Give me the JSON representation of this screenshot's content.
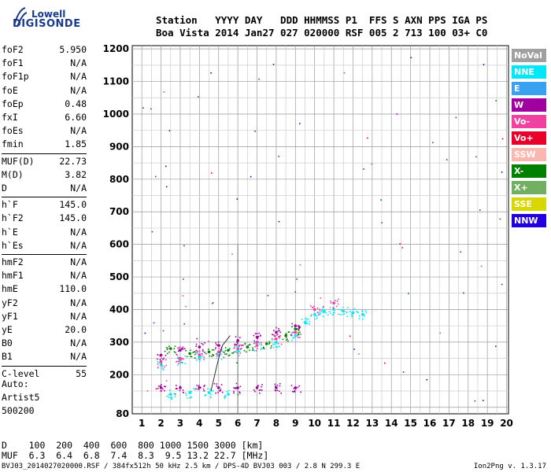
{
  "logo": {
    "line1": "Lowell",
    "line2": "DIGISONDE"
  },
  "header": {
    "line1": "Station   YYYY DAY   DDD HHMMSS P1  FFS S AXN PPS IGA PS",
    "line2": "Boa Vista 2014 Jan27 027 020000 RSF 005 2 713 100 03+ C0"
  },
  "params": [
    {
      "k": "foF2",
      "v": "5.950"
    },
    {
      "k": "foF1",
      "v": "N/A"
    },
    {
      "k": "foF1p",
      "v": "N/A"
    },
    {
      "k": "foE",
      "v": "N/A"
    },
    {
      "k": "foEp",
      "v": "0.48"
    },
    {
      "k": "fxI",
      "v": "6.60"
    },
    {
      "k": "foEs",
      "v": "N/A"
    },
    {
      "k": "fmin",
      "v": "1.85"
    },
    {
      "k": "MUF(D)",
      "v": "22.73"
    },
    {
      "k": "M(D)",
      "v": "3.82"
    },
    {
      "k": "D",
      "v": "N/A"
    },
    {
      "k": "h`F",
      "v": "145.0"
    },
    {
      "k": "h`F2",
      "v": "145.0"
    },
    {
      "k": "h`E",
      "v": "N/A"
    },
    {
      "k": "h`Es",
      "v": "N/A"
    },
    {
      "k": "hmF2",
      "v": "N/A"
    },
    {
      "k": "hmF1",
      "v": "N/A"
    },
    {
      "k": "hmE",
      "v": "110.0"
    },
    {
      "k": "yF2",
      "v": "N/A"
    },
    {
      "k": "yF1",
      "v": "N/A"
    },
    {
      "k": "yE",
      "v": "20.0"
    },
    {
      "k": "B0",
      "v": "N/A"
    },
    {
      "k": "B1",
      "v": "N/A"
    },
    {
      "k": "C-level",
      "v": "55"
    }
  ],
  "auto": {
    "line1": "Auto:",
    "line2": "Artist5",
    "line3": "500200"
  },
  "dmuf": {
    "line1": "D    100  200  400  600  800 1000 1500 3000 [km]",
    "line2": "MUF  6.3  6.4  6.8  7.4  8.3  9.5 13.2 22.7 [MHz]"
  },
  "footer": "BVJ03_2014027020000.RSF / 384fx512h 50 kHz 2.5 km / DPS-4D BVJ03 003 / 2.8 N 299.3 E",
  "version": "Ion2Png v. 1.3.17",
  "legend": [
    {
      "label": "NoVal",
      "color": "#a0a0a0"
    },
    {
      "label": "NNE",
      "color": "#00e8f8"
    },
    {
      "label": "E",
      "color": "#3aa0f0"
    },
    {
      "label": "W",
      "color": "#a000a0"
    },
    {
      "label": "Vo-",
      "color": "#f040a0"
    },
    {
      "label": "Vo+",
      "color": "#e8002a"
    },
    {
      "label": "SSW",
      "color": "#f8b8b0"
    },
    {
      "label": "X-",
      "color": "#008000"
    },
    {
      "label": "X+",
      "color": "#70b060"
    },
    {
      "label": "SSE",
      "color": "#d8d800"
    },
    {
      "label": "NNW",
      "color": "#2000e0"
    }
  ],
  "chart_data": {
    "type": "scatter",
    "x_ticks": [
      1,
      2,
      3,
      4,
      5,
      6,
      7,
      8,
      9,
      10,
      11,
      12,
      13,
      14,
      15,
      16,
      17,
      18,
      19,
      20
    ],
    "y_ticks": [
      80,
      200,
      300,
      400,
      500,
      600,
      700,
      800,
      900,
      1000,
      1100,
      1200
    ],
    "xlim": [
      0.5,
      20.1
    ],
    "ylim": [
      80,
      1210
    ],
    "grid": true,
    "traces": [
      {
        "name": "NNE",
        "color": "#00e8f8",
        "points": [
          [
            2.0,
            230
          ],
          [
            3.0,
            245
          ],
          [
            4.0,
            255
          ],
          [
            5.0,
            260
          ],
          [
            6.0,
            275
          ],
          [
            7.0,
            290
          ],
          [
            8.0,
            300
          ],
          [
            9.0,
            320
          ],
          [
            9.5,
            360
          ],
          [
            10.0,
            385
          ],
          [
            10.5,
            395
          ],
          [
            11.0,
            400
          ],
          [
            11.5,
            395
          ],
          [
            12.0,
            390
          ],
          [
            12.5,
            385
          ],
          [
            2.5,
            140
          ],
          [
            3.5,
            145
          ],
          [
            4.5,
            145
          ],
          [
            5.5,
            140
          ]
        ]
      },
      {
        "name": "W",
        "color": "#a000a0",
        "points": [
          [
            2.0,
            160
          ],
          [
            3.0,
            160
          ],
          [
            4.0,
            160
          ],
          [
            5.0,
            160
          ],
          [
            6.0,
            160
          ],
          [
            7.0,
            160
          ],
          [
            8.0,
            160
          ],
          [
            9.0,
            160
          ],
          [
            2.0,
            260
          ],
          [
            3.0,
            275
          ],
          [
            4.0,
            285
          ],
          [
            5.0,
            290
          ],
          [
            6.0,
            305
          ],
          [
            7.0,
            315
          ],
          [
            8.0,
            330
          ],
          [
            9.0,
            350
          ]
        ]
      },
      {
        "name": "Vo-",
        "color": "#f040a0",
        "points": [
          [
            2.0,
            240
          ],
          [
            3.0,
            250
          ],
          [
            4.0,
            260
          ],
          [
            5.0,
            270
          ],
          [
            6.0,
            280
          ],
          [
            7.0,
            290
          ],
          [
            8.0,
            310
          ],
          [
            9.0,
            330
          ],
          [
            10.0,
            400
          ],
          [
            11.0,
            420
          ]
        ]
      },
      {
        "name": "X-",
        "color": "#008000",
        "points": [
          [
            2.5,
            280
          ],
          [
            3.5,
            265
          ],
          [
            4.5,
            270
          ],
          [
            5.5,
            275
          ],
          [
            6.5,
            285
          ],
          [
            7.5,
            295
          ],
          [
            8.5,
            320
          ],
          [
            9.0,
            340
          ]
        ]
      }
    ],
    "vertical_line": {
      "x": 6.0,
      "y": [
        80,
        600
      ]
    },
    "h_curve": [
      [
        4.6,
        150
      ],
      [
        4.8,
        200
      ],
      [
        5.0,
        250
      ],
      [
        5.2,
        290
      ],
      [
        5.6,
        320
      ]
    ]
  }
}
